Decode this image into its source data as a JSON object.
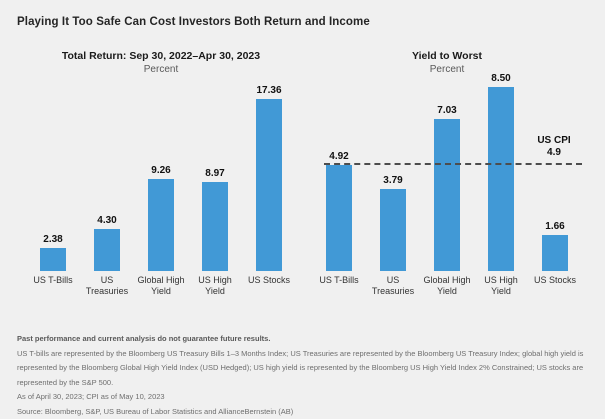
{
  "page": {
    "title": "Playing It Too Safe Can Cost Investors Both Return and Income"
  },
  "colors": {
    "background": "#f0f0f0",
    "bar": "#4199d6",
    "reference_line": "#4d4d4d"
  },
  "chart_data": [
    {
      "type": "bar",
      "title": "Total Return: Sep 30, 2022–Apr 30, 2023",
      "subtitle": "Percent",
      "categories": [
        "US T-Bills",
        "US Treasuries",
        "Global High Yield",
        "US High Yield",
        "US Stocks"
      ],
      "values": [
        2.38,
        4.3,
        9.26,
        8.97,
        17.36
      ],
      "value_labels": [
        "2.38",
        "4.30",
        "9.26",
        "8.97",
        "17.36"
      ],
      "ylim": [
        0,
        18.8
      ],
      "grid": false,
      "legend": "none",
      "bar_color": "#4199d6"
    },
    {
      "type": "bar",
      "title": "Yield to Worst",
      "subtitle": "Percent",
      "categories": [
        "US T-Bills",
        "US Treasuries",
        "Global High Yield",
        "US High Yield",
        "US Stocks"
      ],
      "values": [
        4.92,
        3.79,
        7.03,
        8.5,
        1.66
      ],
      "value_labels": [
        "4.92",
        "3.79",
        "7.03",
        "8.50",
        "1.66"
      ],
      "ylim": [
        0,
        8.6
      ],
      "grid": false,
      "legend": "none",
      "bar_color": "#4199d6",
      "reference_line": {
        "value": 4.9,
        "label": "US CPI",
        "value_label": "4.9",
        "style": "dashed",
        "color": "#4d4d4d"
      }
    }
  ],
  "footnotes": {
    "disclaimer": "Past performance and current analysis do not guarantee future results.",
    "definitions": "US T-bills are represented by the Bloomberg US Treasury Bills 1–3 Months Index; US Treasuries are represented by the Bloomberg US Treasury Index; global high yield is represented by the Bloomberg Global High Yield Index (USD Hedged); US high yield is represented by the Bloomberg US High Yield Index 2% Constrained; US stocks are represented by the S&P 500.",
    "as_of": "As of April 30, 2023; CPI as of May 10, 2023",
    "source": "Source: Bloomberg, S&P, US Bureau of Labor Statistics and AllianceBernstein (AB)"
  }
}
